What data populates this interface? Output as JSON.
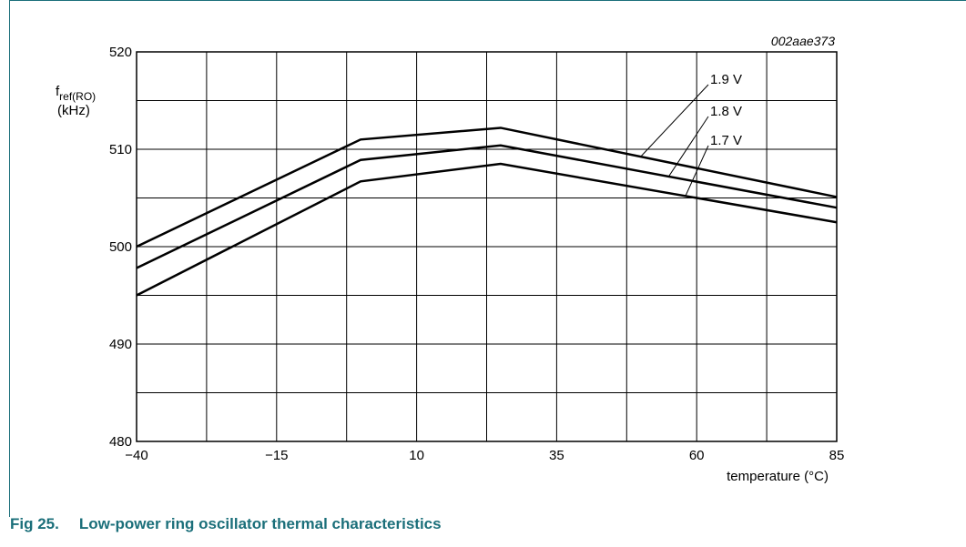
{
  "figure": {
    "number": "Fig 25.",
    "caption": "Low-power ring oscillator thermal characteristics",
    "code": "002aae373",
    "caption_color": "#1b6f7a"
  },
  "chart_data": {
    "type": "line",
    "ylabel_main": "f",
    "ylabel_sub": "ref(RO)",
    "yunit": "(kHz)",
    "xlabel": "temperature (°C)",
    "xlim": [
      -40,
      85
    ],
    "ylim": [
      480,
      520
    ],
    "xticks": [
      -40,
      -15,
      10,
      35,
      60,
      85
    ],
    "xtick_labels": [
      "−40",
      "−15",
      "10",
      "35",
      "60",
      "85"
    ],
    "yticks": [
      480,
      490,
      500,
      510,
      520
    ],
    "ytick_labels": [
      "480",
      "490",
      "500",
      "510",
      "520"
    ],
    "grid": true,
    "series": [
      {
        "name": "1.9 V",
        "x": [
          -40,
          0,
          25,
          85
        ],
        "y": [
          500,
          511,
          512.2,
          505.1
        ]
      },
      {
        "name": "1.8 V",
        "x": [
          -40,
          0,
          25,
          85
        ],
        "y": [
          497.8,
          508.9,
          510.4,
          504
        ]
      },
      {
        "name": "1.7 V",
        "x": [
          -40,
          0,
          25,
          85
        ],
        "y": [
          495,
          506.7,
          508.5,
          502.5
        ]
      }
    ]
  }
}
